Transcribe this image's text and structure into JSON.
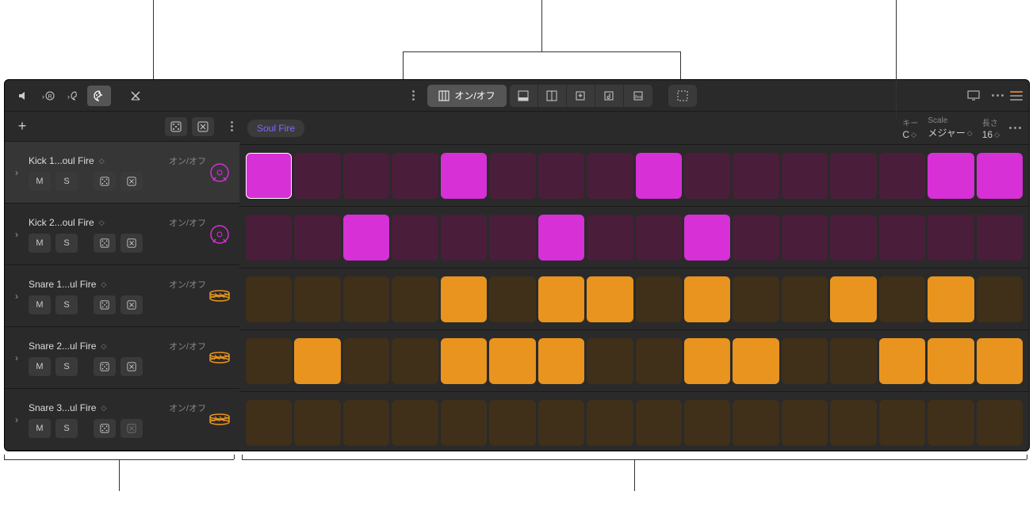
{
  "toolbar": {
    "center_label": "オン/オフ"
  },
  "grid_header": {
    "preset": "Soul Fire",
    "key_label": "キー",
    "key_value": "C",
    "scale_label": "Scale",
    "scale_value": "メジャー",
    "length_label": "長さ",
    "length_value": "16"
  },
  "colors": {
    "kick_on": "#d630d6",
    "kick_off": "#4a1e3a",
    "snare_on": "#e8941f",
    "snare_off": "#40301a",
    "icon_kick": "#d630d6",
    "icon_snare": "#e8941f"
  },
  "tracks": [
    {
      "name": "Kick 1...oul Fire",
      "onoff": "オン/オフ",
      "mute": "M",
      "solo": "S",
      "type": "kick",
      "selected": true,
      "steps": [
        1,
        0,
        0,
        0,
        1,
        0,
        0,
        0,
        1,
        0,
        0,
        0,
        0,
        0,
        1,
        1
      ]
    },
    {
      "name": "Kick 2...oul Fire",
      "onoff": "オン/オフ",
      "mute": "M",
      "solo": "S",
      "type": "kick",
      "selected": false,
      "steps": [
        0,
        0,
        1,
        0,
        0,
        0,
        1,
        0,
        0,
        1,
        0,
        0,
        0,
        0,
        0,
        0
      ]
    },
    {
      "name": "Snare 1...ul Fire",
      "onoff": "オン/オフ",
      "mute": "M",
      "solo": "S",
      "type": "snare",
      "selected": false,
      "steps": [
        0,
        0,
        0,
        0,
        1,
        0,
        1,
        1,
        0,
        1,
        0,
        0,
        1,
        0,
        1,
        0
      ]
    },
    {
      "name": "Snare 2...ul Fire",
      "onoff": "オン/オフ",
      "mute": "M",
      "solo": "S",
      "type": "snare",
      "selected": false,
      "steps": [
        0,
        1,
        0,
        0,
        1,
        1,
        1,
        0,
        0,
        1,
        1,
        0,
        0,
        1,
        1,
        1
      ]
    },
    {
      "name": "Snare 3...ul Fire",
      "onoff": "オン/オフ",
      "mute": "M",
      "solo": "S",
      "type": "snare",
      "selected": false,
      "steps": [
        0,
        0,
        0,
        0,
        0,
        0,
        0,
        0,
        0,
        0,
        0,
        0,
        0,
        0,
        0,
        0
      ]
    }
  ]
}
